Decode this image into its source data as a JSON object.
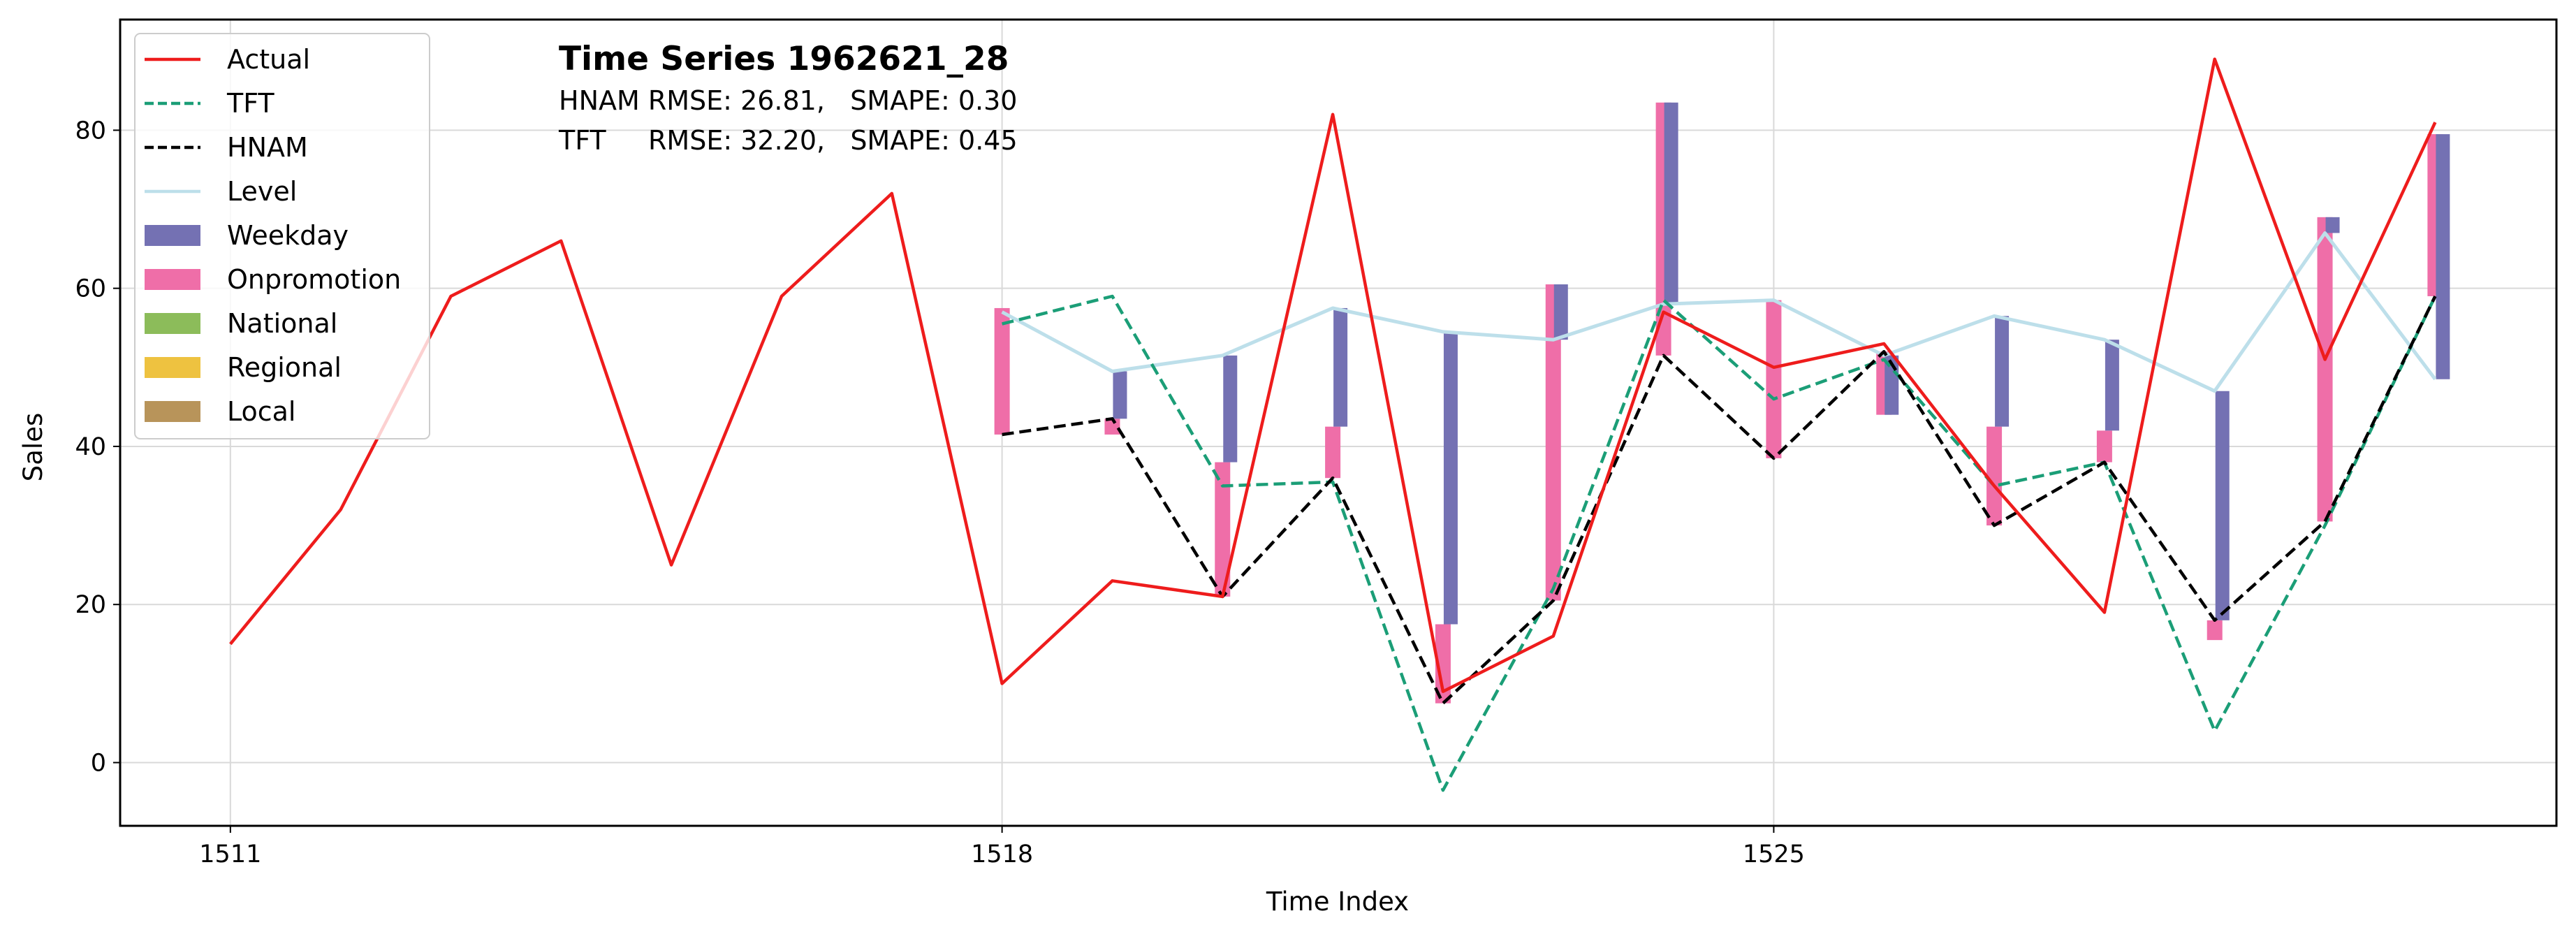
{
  "chart_data": {
    "type": "line",
    "title": "Time Series 1962621_28",
    "annotations": [
      "HNAM RMSE: 26.81,   SMAPE: 0.30",
      "TFT     RMSE: 32.20,   SMAPE: 0.45"
    ],
    "xlabel": "Time Index",
    "ylabel": "Sales",
    "xlim": [
      1510,
      1532.1
    ],
    "ylim": [
      -8,
      94
    ],
    "xticks": [
      1511,
      1518,
      1525
    ],
    "yticks": [
      0,
      20,
      40,
      60,
      80
    ],
    "grid": true,
    "legend_position": "upper-left",
    "colors": {
      "actual": "#ee1c1c",
      "tft": "#1b9e77",
      "hnam": "#000000",
      "level": "#bddfea",
      "weekday": "#7471b3",
      "onpromotion": "#ef6ea8",
      "national": "#8cbc5a",
      "regional": "#eec240",
      "local": "#b8945a",
      "grid": "#d9d9d9"
    },
    "legend": [
      "Actual",
      "TFT",
      "HNAM",
      "Level",
      "Weekday",
      "Onpromotion",
      "National",
      "Regional",
      "Local"
    ],
    "series": [
      {
        "name": "Actual",
        "style": "solid",
        "x": [
          1511,
          1512,
          1513,
          1514,
          1515,
          1516,
          1517,
          1518,
          1519,
          1520,
          1521,
          1522,
          1523,
          1524,
          1525,
          1526,
          1527,
          1528,
          1529,
          1530,
          1531
        ],
        "y": [
          15,
          32,
          59,
          66,
          25,
          59,
          72,
          10,
          23,
          21,
          82,
          9,
          16,
          57,
          50,
          53,
          35,
          19,
          89,
          51,
          81
        ]
      },
      {
        "name": "TFT",
        "style": "dashed",
        "x": [
          1518,
          1519,
          1520,
          1521,
          1522,
          1523,
          1524,
          1525,
          1526,
          1527,
          1528,
          1529,
          1530,
          1531
        ],
        "y": [
          55.5,
          59,
          35,
          35.5,
          -3.5,
          22,
          58.5,
          46,
          51,
          35,
          38,
          4,
          30,
          59
        ]
      },
      {
        "name": "HNAM",
        "style": "dashed",
        "x": [
          1518,
          1519,
          1520,
          1521,
          1522,
          1523,
          1524,
          1525,
          1526,
          1527,
          1528,
          1529,
          1530,
          1531
        ],
        "y": [
          41.5,
          43.5,
          21,
          36,
          7.5,
          20.5,
          51.5,
          38.5,
          52,
          30,
          38,
          18,
          30.5,
          59
        ]
      },
      {
        "name": "Level",
        "style": "solid",
        "x": [
          1518,
          1519,
          1520,
          1521,
          1522,
          1523,
          1524,
          1525,
          1526,
          1527,
          1528,
          1529,
          1530,
          1531
        ],
        "y": [
          57,
          49.5,
          51.5,
          57.5,
          54.5,
          53.5,
          58,
          58.5,
          51.5,
          56.5,
          53.5,
          47,
          67,
          48.5
        ]
      }
    ],
    "components": {
      "x": [
        1518,
        1519,
        1520,
        1521,
        1522,
        1523,
        1524,
        1525,
        1526,
        1527,
        1528,
        1529,
        1530,
        1531
      ],
      "weekday": [
        [
          1518,
          0,
          0
        ],
        [
          1519,
          49.5,
          43.5
        ],
        [
          1520,
          51.5,
          38
        ],
        [
          1521,
          57.5,
          42.5
        ],
        [
          1522,
          54.5,
          17.5
        ],
        [
          1523,
          53.5,
          60.5
        ],
        [
          1524,
          58,
          83.5
        ],
        [
          1525,
          58.5,
          58.5
        ],
        [
          1526,
          51.5,
          44
        ],
        [
          1527,
          56.5,
          42.5
        ],
        [
          1528,
          53.5,
          42
        ],
        [
          1529,
          47,
          18
        ],
        [
          1530,
          67,
          69
        ],
        [
          1531,
          48.5,
          79.5
        ]
      ],
      "onpromotion": [
        [
          1518,
          57.5,
          41.5
        ],
        [
          1519,
          43.5,
          41.5
        ],
        [
          1520,
          38,
          21
        ],
        [
          1521,
          42.5,
          36
        ],
        [
          1522,
          17.5,
          7.5
        ],
        [
          1523,
          60.5,
          20.5
        ],
        [
          1524,
          83.5,
          51.5
        ],
        [
          1525,
          58.5,
          38.5
        ],
        [
          1526,
          44,
          52
        ],
        [
          1527,
          42.5,
          30
        ],
        [
          1528,
          42,
          38
        ],
        [
          1529,
          18,
          15.5
        ],
        [
          1530,
          69,
          30.5
        ],
        [
          1531,
          79.5,
          59
        ]
      ]
    }
  }
}
